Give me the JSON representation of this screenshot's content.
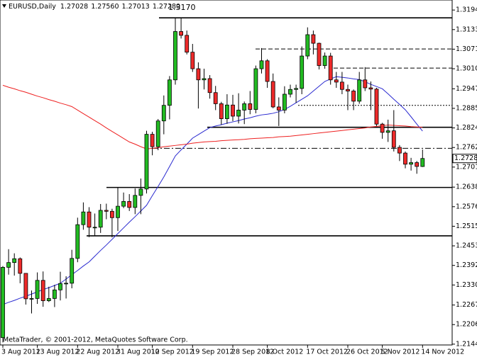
{
  "chart_data": {
    "type": "candlestick",
    "header": {
      "symbol": "EURUSD,Daily",
      "open": "1.27028",
      "high": "1.27560",
      "low": "1.27013",
      "close": "1.27280"
    },
    "footer": "MetaTrader, © 2001-2012, MetaQuotes Software Corp.",
    "categories": [
      "3 Aug 2012",
      null,
      null,
      null,
      null,
      null,
      "13 Aug 2012",
      null,
      null,
      null,
      null,
      null,
      null,
      "22 Aug 2012",
      null,
      null,
      null,
      null,
      null,
      null,
      "31 Aug 2012",
      null,
      null,
      null,
      null,
      null,
      "10 Sep 2012",
      null,
      null,
      null,
      null,
      null,
      null,
      "19 Sep 2012",
      null,
      null,
      null,
      null,
      null,
      null,
      "28 Sep 2012",
      null,
      null,
      null,
      null,
      null,
      "8 Oct 2012",
      null,
      null,
      null,
      null,
      null,
      null,
      "17 Oct 2012",
      null,
      null,
      null,
      null,
      null,
      null,
      "26 Oct 2012",
      null,
      null,
      null,
      null,
      null,
      "5 Nov 2012",
      null,
      null,
      null,
      null,
      null,
      null,
      "14 Nov 2012"
    ],
    "open": [
      1.2165,
      1.2386,
      1.2401,
      1.2413,
      1.2367,
      1.2287,
      1.2288,
      1.2345,
      1.2281,
      1.2288,
      1.2315,
      1.2335,
      1.2336,
      1.2414,
      1.252,
      1.256,
      1.2512,
      1.2512,
      1.2565,
      1.2562,
      1.2542,
      1.2578,
      1.2593,
      1.2574,
      1.2612,
      1.2632,
      1.2804,
      1.2765,
      1.2846,
      1.2895,
      1.2975,
      1.3127,
      1.3115,
      1.3062,
      1.301,
      1.2975,
      1.2979,
      1.2935,
      1.29,
      1.2853,
      1.2896,
      1.2861,
      1.288,
      1.29,
      1.2882,
      1.301,
      1.3035,
      1.297,
      1.289,
      1.288,
      1.293,
      1.2945,
      1.2948,
      1.305,
      1.3117,
      1.309,
      1.302,
      1.305,
      1.2975,
      1.2968,
      1.2945,
      1.294,
      1.2908,
      1.2975,
      1.295,
      1.2946,
      1.2836,
      1.281,
      1.2815,
      1.2763,
      1.2745,
      1.271,
      1.2715,
      1.27028
    ],
    "high": [
      1.239,
      1.2443,
      1.243,
      1.2417,
      1.2367,
      1.2313,
      1.237,
      1.2373,
      1.2325,
      1.2331,
      1.2372,
      1.2358,
      1.2441,
      1.2542,
      1.259,
      1.2575,
      1.2555,
      1.2585,
      1.2586,
      1.257,
      1.2637,
      1.2621,
      1.2616,
      1.2634,
      1.2665,
      1.2815,
      1.2812,
      1.2852,
      1.2926,
      1.2987,
      1.3168,
      1.317,
      1.313,
      1.3088,
      1.303,
      1.301,
      1.299,
      1.2956,
      1.2906,
      1.293,
      1.2928,
      1.2933,
      1.2907,
      1.294,
      1.302,
      1.3075,
      1.304,
      1.2995,
      1.292,
      1.2955,
      1.296,
      1.296,
      1.308,
      1.314,
      1.313,
      1.3092,
      1.3061,
      1.306,
      1.3,
      1.3,
      1.296,
      1.2945,
      1.3,
      1.3015,
      1.297,
      1.295,
      1.284,
      1.285,
      1.288,
      1.277,
      1.275,
      1.273,
      1.272,
      1.2756
    ],
    "low": [
      1.215,
      1.2363,
      1.236,
      1.2336,
      1.2269,
      1.2241,
      1.2271,
      1.2262,
      1.2277,
      1.2261,
      1.2282,
      1.2288,
      1.232,
      1.2402,
      1.2504,
      1.2481,
      1.2486,
      1.2494,
      1.2537,
      1.248,
      1.25,
      1.2572,
      1.2563,
      1.2553,
      1.2553,
      1.2618,
      1.2738,
      1.2754,
      1.2804,
      1.2851,
      1.296,
      1.3105,
      1.3055,
      1.3,
      1.2885,
      1.2945,
      1.2916,
      1.288,
      1.2834,
      1.2837,
      1.2845,
      1.2838,
      1.2836,
      1.2867,
      1.287,
      1.2995,
      1.295,
      1.2886,
      1.283,
      1.287,
      1.292,
      1.2903,
      1.293,
      1.304,
      1.3055,
      1.3008,
      1.301,
      1.296,
      1.295,
      1.293,
      1.288,
      1.288,
      1.29,
      1.294,
      1.288,
      1.283,
      1.279,
      1.278,
      1.275,
      1.272,
      1.2697,
      1.269,
      1.268,
      1.27013
    ],
    "close": [
      1.2386,
      1.2401,
      1.2413,
      1.2367,
      1.2287,
      1.2288,
      1.2345,
      1.2281,
      1.2288,
      1.2315,
      1.2335,
      1.2336,
      1.2414,
      1.252,
      1.256,
      1.2512,
      1.2512,
      1.2565,
      1.2562,
      1.2542,
      1.2578,
      1.2593,
      1.2574,
      1.2612,
      1.2632,
      1.2804,
      1.2765,
      1.2846,
      1.2895,
      1.2975,
      1.3127,
      1.3115,
      1.3062,
      1.301,
      1.2975,
      1.2979,
      1.2935,
      1.29,
      1.2853,
      1.2896,
      1.2861,
      1.288,
      1.29,
      1.2882,
      1.301,
      1.3035,
      1.297,
      1.289,
      1.288,
      1.293,
      1.2945,
      1.2948,
      1.305,
      1.3117,
      1.309,
      1.302,
      1.305,
      1.2975,
      1.2968,
      1.2945,
      1.294,
      1.2908,
      1.2975,
      1.295,
      1.2946,
      1.2836,
      1.281,
      1.2815,
      1.2763,
      1.2745,
      1.271,
      1.2715,
      1.2703,
      1.2728
    ],
    "up_color": "#22bb22",
    "down_color": "#ee2a2a",
    "series": [
      {
        "color": "#2a2ad0",
        "values": [
          1.2269,
          1.2276,
          1.2282,
          1.2289,
          1.2295,
          1.2302,
          1.2309,
          1.2316,
          1.2322,
          1.2329,
          1.2336,
          1.2349,
          1.2363,
          1.2376,
          1.239,
          1.2403,
          1.2421,
          1.2439,
          1.2456,
          1.2474,
          1.2492,
          1.251,
          1.2528,
          1.2545,
          1.2563,
          1.2581,
          1.2611,
          1.264,
          1.267,
          1.2703,
          1.2736,
          1.2755,
          1.2773,
          1.2792,
          1.2803,
          1.2814,
          1.2825,
          1.283,
          1.2834,
          1.2839,
          1.2843,
          1.2847,
          1.2852,
          1.2856,
          1.2861,
          1.2865,
          1.2867,
          1.287,
          1.2875,
          1.2882,
          1.2892,
          1.2903,
          1.2914,
          1.2925,
          1.294,
          1.2955,
          1.297,
          1.2978,
          1.2985,
          1.2983,
          1.2981,
          1.2978,
          1.2976,
          1.2969,
          1.2961,
          1.2954,
          1.2947,
          1.2931,
          1.2914,
          1.2898,
          1.2881,
          1.2859,
          1.2836,
          1.2814
        ]
      },
      {
        "color": "#ee2020",
        "values": [
          1.2958,
          1.2952,
          1.2947,
          1.2941,
          1.2936,
          1.293,
          1.2924,
          1.2919,
          1.2913,
          1.2908,
          1.2902,
          1.2897,
          1.2891,
          1.288,
          1.2869,
          1.2858,
          1.2847,
          1.2836,
          1.2824,
          1.2813,
          1.2802,
          1.2791,
          1.278,
          1.2773,
          1.2765,
          1.2758,
          1.276,
          1.2762,
          1.2765,
          1.2767,
          1.2769,
          1.2771,
          1.2773,
          1.2776,
          1.2778,
          1.278,
          1.2781,
          1.2782,
          1.2784,
          1.2785,
          1.2786,
          1.2787,
          1.2788,
          1.279,
          1.2791,
          1.2792,
          1.2793,
          1.2794,
          1.2796,
          1.2797,
          1.2798,
          1.28,
          1.2802,
          1.2804,
          1.2806,
          1.2808,
          1.281,
          1.2812,
          1.2814,
          1.2816,
          1.2818,
          1.282,
          1.2822,
          1.2824,
          1.2827,
          1.2829,
          1.2831,
          1.2833,
          1.2832,
          1.2831,
          1.283,
          1.2828,
          1.2827,
          1.2826
        ]
      }
    ],
    "levels": [
      {
        "value": 1.317,
        "label": "1.3170",
        "style": "solid"
      },
      {
        "value": 1.2826,
        "style": "solid"
      },
      {
        "value": 1.2637,
        "style": "solid"
      },
      {
        "value": 1.2485,
        "style": "solid"
      },
      {
        "value": 1.3072,
        "style": "dashed"
      },
      {
        "value": 1.3012,
        "style": "dashed"
      },
      {
        "value": 1.2895,
        "style": "dotted"
      },
      {
        "value": 1.276,
        "style": "dashdot"
      }
    ],
    "ylim": [
      1.2142,
      1.3226
    ],
    "yticks": [
      1.31945,
      {
        "value": 1.3133,
        "label": "1.31330"
      },
      1.30715,
      {
        "value": 1.301,
        "label": "1.30100"
      },
      {
        "value": 1.2947,
        "label": "1.29470"
      },
      1.28855,
      {
        "value": 1.2824,
        "label": "1.28240"
      },
      1.27625,
      {
        "value": 1.2701,
        "label": "1.27010"
      },
      {
        "value": 1.2638,
        "label": "1.26380"
      },
      1.25765,
      {
        "value": 1.2515,
        "label": "1.25150"
      },
      1.24535,
      {
        "value": 1.2392,
        "label": "1.23920"
      },
      1.23305,
      1.22675,
      {
        "value": 1.2206,
        "label": "1.22060"
      },
      1.21445
    ]
  }
}
